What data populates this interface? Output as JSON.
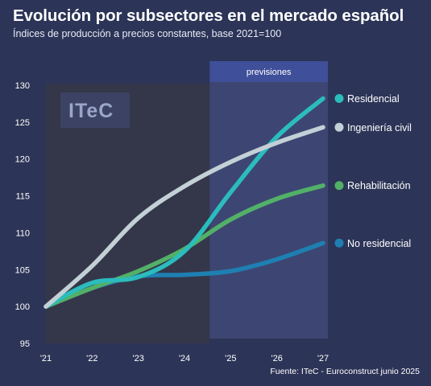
{
  "title": "Evolución por subsectores en el mercado español",
  "subtitle": "Índices de producción a precios constantes, base 2021=100",
  "source": "Fuente: ITeC - Euroconstruct junio 2025",
  "watermark": "ITeC",
  "forecast_label": "previsiones",
  "colors": {
    "background": "#2c3457",
    "history_panel": "#34374a",
    "forecast_panel": "#3d4672",
    "forecast_header": "#3f4f99"
  },
  "chart_data": {
    "type": "line",
    "x": [
      "'21",
      "'22",
      "'23",
      "'24",
      "'25",
      "'26",
      "'27"
    ],
    "ylim": [
      95,
      130
    ],
    "yticks": [
      95,
      100,
      105,
      110,
      115,
      120,
      125,
      130
    ],
    "forecast_start": "'25",
    "grid": false,
    "legend": "right, at line ends",
    "series": [
      {
        "name": "Residencial",
        "color": "#2bbcbc",
        "values": [
          100,
          103.2,
          104.0,
          107.5,
          115.5,
          123.0,
          128.2
        ]
      },
      {
        "name": "Ingeniería civil",
        "color": "#c3d0d6",
        "values": [
          100,
          105.5,
          112.0,
          116.3,
          119.6,
          122.2,
          124.3
        ]
      },
      {
        "name": "Rehabilitación",
        "color": "#52b068",
        "values": [
          100,
          102.5,
          104.8,
          107.8,
          111.8,
          114.6,
          116.4
        ]
      },
      {
        "name": "No residencial",
        "color": "#1f7fb2",
        "values": [
          100,
          102.5,
          104.1,
          104.3,
          104.8,
          106.4,
          108.6
        ]
      }
    ]
  }
}
